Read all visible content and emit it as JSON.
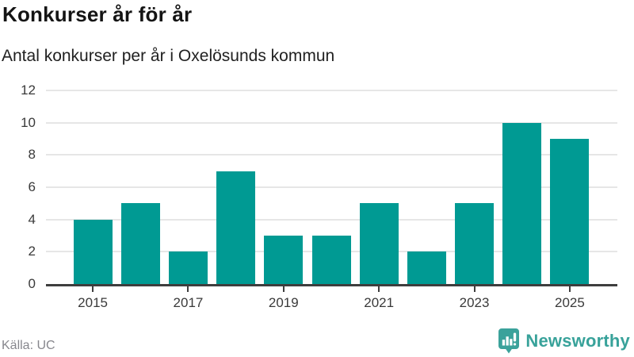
{
  "header": {
    "title": "Konkurser år för år",
    "subtitle": "Antal konkurser per år i Oxelösunds kommun"
  },
  "footer": {
    "source": "Källa: UC",
    "brand": "Newsworthy"
  },
  "colors": {
    "bar": "#009a93",
    "grid": "#e6e6e6",
    "axis": "#3e3e3e",
    "tick_text": "#3a3a3a",
    "brand_teal": "#38a29a"
  },
  "chart_data": {
    "type": "bar",
    "title": "Konkurser år för år",
    "subtitle": "Antal konkurser per år i Oxelösunds kommun",
    "categories": [
      "2015",
      "2016",
      "2017",
      "2018",
      "2019",
      "2020",
      "2021",
      "2022",
      "2023",
      "2024",
      "2025"
    ],
    "values": [
      4,
      5,
      2,
      7,
      3,
      3,
      5,
      2,
      5,
      10,
      9
    ],
    "xlabel": "",
    "ylabel": "",
    "ylim": [
      0,
      12
    ],
    "yticks": [
      0,
      2,
      4,
      6,
      8,
      10,
      12
    ],
    "xtick_labels": [
      "2015",
      "2017",
      "2019",
      "2021",
      "2023",
      "2025"
    ],
    "xtick_indices": [
      0,
      2,
      4,
      6,
      8,
      10
    ],
    "grid": true,
    "legend": false,
    "bar_color": "#009a93",
    "source": "Källa: UC"
  }
}
